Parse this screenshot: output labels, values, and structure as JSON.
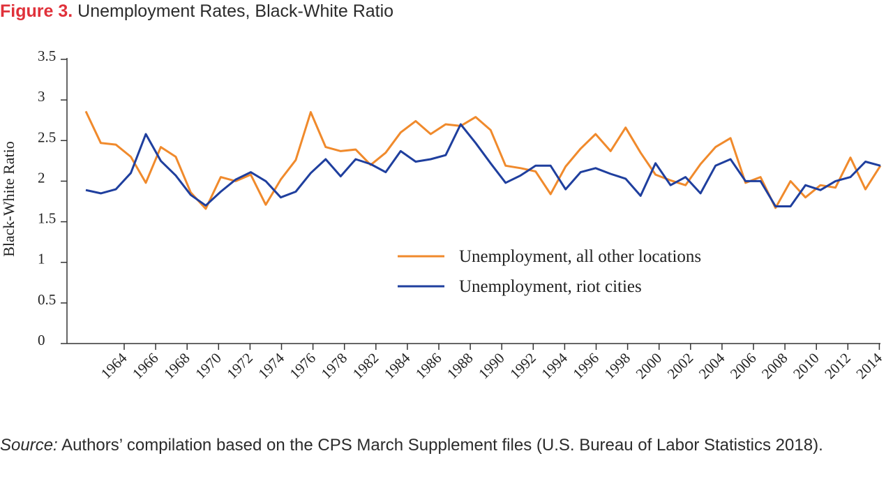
{
  "figure": {
    "label": "Figure 3.",
    "title": "Unemployment Rates, Black-White Ratio"
  },
  "source": {
    "label": "Source:",
    "text": "Authors’ compilation based on the CPS March Supplement files (U.S. Bureau of Labor Statistics 2018)."
  },
  "colors": {
    "orange": "#f08a2c",
    "blue": "#1f3f9e",
    "title_red": "#e0313a"
  },
  "chart_data": {
    "type": "line",
    "title": "",
    "xlabel": "",
    "ylabel": "Black-White Ratio",
    "ylim": [
      0,
      3.5
    ],
    "yticks": [
      "0",
      "0.5",
      "1",
      "1.5",
      "2",
      "2.5",
      "3",
      "3.5"
    ],
    "xticks": [
      "1964",
      "1966",
      "1968",
      "1970",
      "1972",
      "1974",
      "1976",
      "1978",
      "1982",
      "1984",
      "1986",
      "1988",
      "1990",
      "1992",
      "1994",
      "1996",
      "1998",
      "2000",
      "2002",
      "2004",
      "2006",
      "2008",
      "2010",
      "2012",
      "2014"
    ],
    "grid": false,
    "legend_position": "center-right",
    "series": [
      {
        "name": "Unemployment, all other locations",
        "color": "#f08a2c",
        "values": [
          2.86,
          2.47,
          2.45,
          2.3,
          1.98,
          2.42,
          2.3,
          1.86,
          1.66,
          2.05,
          2.0,
          2.08,
          1.71,
          2.02,
          2.26,
          2.85,
          2.42,
          2.37,
          2.39,
          2.2,
          2.35,
          2.6,
          2.74,
          2.58,
          2.7,
          2.68,
          2.79,
          2.63,
          2.19,
          2.16,
          2.12,
          1.84,
          2.18,
          2.4,
          2.58,
          2.37,
          2.66,
          2.35,
          2.08,
          2.01,
          1.95,
          2.21,
          2.42,
          2.53,
          1.98,
          2.05,
          1.67,
          2.0,
          1.8,
          1.95,
          1.92,
          2.29,
          1.9,
          2.19
        ]
      },
      {
        "name": "Unemployment, riot cities",
        "color": "#1f3f9e",
        "values": [
          1.89,
          1.85,
          1.9,
          2.1,
          2.58,
          2.25,
          2.07,
          1.83,
          1.7,
          1.87,
          2.02,
          2.11,
          2.0,
          1.8,
          1.87,
          2.1,
          2.27,
          2.06,
          2.27,
          2.21,
          2.11,
          2.37,
          2.24,
          2.27,
          2.32,
          2.7,
          2.47,
          2.22,
          1.98,
          2.07,
          2.19,
          2.19,
          1.9,
          2.11,
          2.16,
          2.09,
          2.03,
          1.82,
          2.22,
          1.95,
          2.05,
          1.85,
          2.19,
          2.27,
          2.0,
          2.0,
          1.69,
          1.69,
          1.95,
          1.89,
          2.0,
          2.05,
          2.24,
          2.19
        ]
      }
    ]
  }
}
